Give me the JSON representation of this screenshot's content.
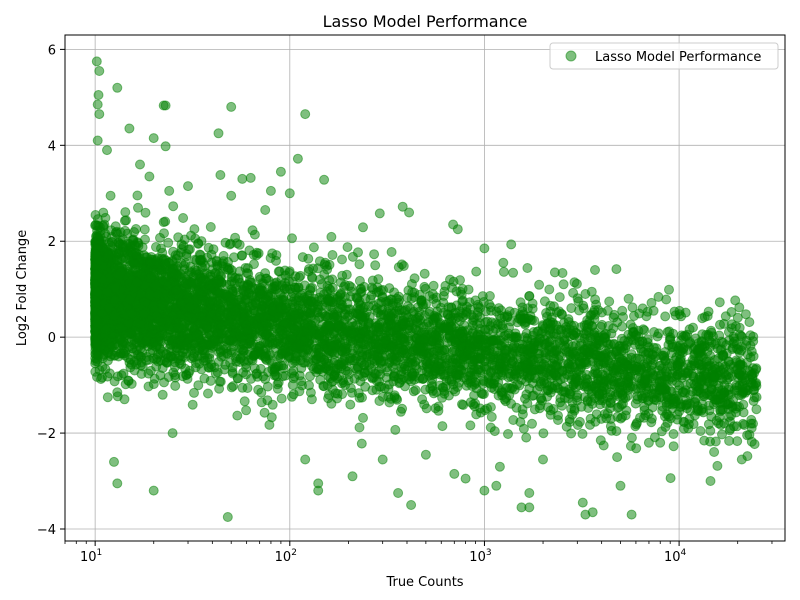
{
  "chart_data": {
    "type": "scatter",
    "title": "Lasso Model Performance",
    "xlabel": "True Counts",
    "ylabel": "Log2 Fold Change",
    "xscale": "log",
    "xlim": [
      7,
      35000
    ],
    "ylim": [
      -4.25,
      6.3
    ],
    "x_ticks": [
      10,
      100,
      1000,
      10000
    ],
    "x_tick_labels": [
      {
        "base": "10",
        "exp": "1"
      },
      {
        "base": "10",
        "exp": "2"
      },
      {
        "base": "10",
        "exp": "3"
      },
      {
        "base": "10",
        "exp": "4"
      }
    ],
    "y_ticks": [
      -4,
      -2,
      0,
      2,
      4,
      6
    ],
    "y_tick_labels": [
      "−4",
      "−2",
      "0",
      "2",
      "4",
      "6"
    ],
    "grid": true,
    "legend": {
      "position": "top-right",
      "entries": [
        "Lasso Model Performance"
      ]
    },
    "series": [
      {
        "name": "Lasso Model Performance",
        "color": "#008000",
        "opacity": 0.5,
        "dense_cloud": {
          "x_range": [
            10,
            25000
          ],
          "trend": [
            [
              10,
              0.9
            ],
            [
              100,
              0.2
            ],
            [
              1000,
              -0.3
            ],
            [
              10000,
              -0.8
            ]
          ],
          "spread_sd": 0.65
        },
        "points": [
          [
            10.2,
            5.75
          ],
          [
            10.5,
            5.55
          ],
          [
            10.4,
            5.05
          ],
          [
            13,
            5.2
          ],
          [
            10.3,
            4.85
          ],
          [
            10.5,
            4.65
          ],
          [
            15,
            4.35
          ],
          [
            20,
            4.15
          ],
          [
            22.5,
            4.83
          ],
          [
            23,
            4.83
          ],
          [
            43,
            4.25
          ],
          [
            50,
            4.8
          ],
          [
            120,
            4.65
          ],
          [
            10.3,
            4.1
          ],
          [
            23,
            3.98
          ],
          [
            11.5,
            3.9
          ],
          [
            17,
            3.6
          ],
          [
            19,
            3.35
          ],
          [
            44,
            3.38
          ],
          [
            57,
            3.3
          ],
          [
            63,
            3.32
          ],
          [
            90,
            3.45
          ],
          [
            110,
            3.72
          ],
          [
            150,
            3.28
          ],
          [
            24,
            3.05
          ],
          [
            30,
            3.15
          ],
          [
            50,
            2.95
          ],
          [
            80,
            3.05
          ],
          [
            100,
            3.0
          ],
          [
            12,
            2.95
          ],
          [
            290,
            2.58
          ],
          [
            380,
            2.72
          ],
          [
            410,
            2.6
          ],
          [
            690,
            2.35
          ],
          [
            730,
            2.25
          ],
          [
            1000,
            1.85
          ],
          [
            1250,
            1.55
          ],
          [
            2300,
            1.35
          ],
          [
            3700,
            1.4
          ],
          [
            3300,
            0.9
          ],
          [
            4300,
            0.55
          ],
          [
            5100,
            0.55
          ],
          [
            5500,
            0.8
          ],
          [
            6500,
            0.6
          ],
          [
            7400,
            0.55
          ],
          [
            9000,
            0.0
          ],
          [
            11000,
            0.05
          ],
          [
            10500,
            -0.25
          ],
          [
            12500,
            -0.55
          ],
          [
            13000,
            -0.4
          ],
          [
            14000,
            -0.3
          ],
          [
            17000,
            -0.75
          ],
          [
            18000,
            -1.05
          ],
          [
            17500,
            -1.4
          ],
          [
            25000,
            -1.25
          ],
          [
            21000,
            -2.55
          ],
          [
            14500,
            -3.0
          ],
          [
            5700,
            -3.7
          ],
          [
            3200,
            -3.45
          ],
          [
            3300,
            -3.7
          ],
          [
            3600,
            -3.65
          ],
          [
            1700,
            -3.55
          ],
          [
            1550,
            -3.55
          ],
          [
            1700,
            -3.25
          ],
          [
            1000,
            -3.2
          ],
          [
            1150,
            -3.1
          ],
          [
            360,
            -3.25
          ],
          [
            420,
            -3.5
          ],
          [
            140,
            -3.05
          ],
          [
            140,
            -3.2
          ],
          [
            20,
            -3.2
          ],
          [
            13,
            -3.05
          ],
          [
            12.5,
            -2.6
          ],
          [
            48,
            -3.75
          ],
          [
            25,
            -2.0
          ],
          [
            13,
            -1.15
          ],
          [
            10,
            -0.55
          ],
          [
            120,
            -2.55
          ],
          [
            210,
            -2.9
          ],
          [
            300,
            -2.55
          ],
          [
            500,
            -2.45
          ],
          [
            700,
            -2.85
          ],
          [
            800,
            -2.95
          ],
          [
            1200,
            -2.7
          ],
          [
            5000,
            -3.1
          ],
          [
            4800,
            -2.5
          ],
          [
            7000,
            -2.2
          ],
          [
            8000,
            -2.2
          ],
          [
            4500,
            -1.95
          ],
          [
            2000,
            -2.55
          ]
        ]
      }
    ]
  }
}
